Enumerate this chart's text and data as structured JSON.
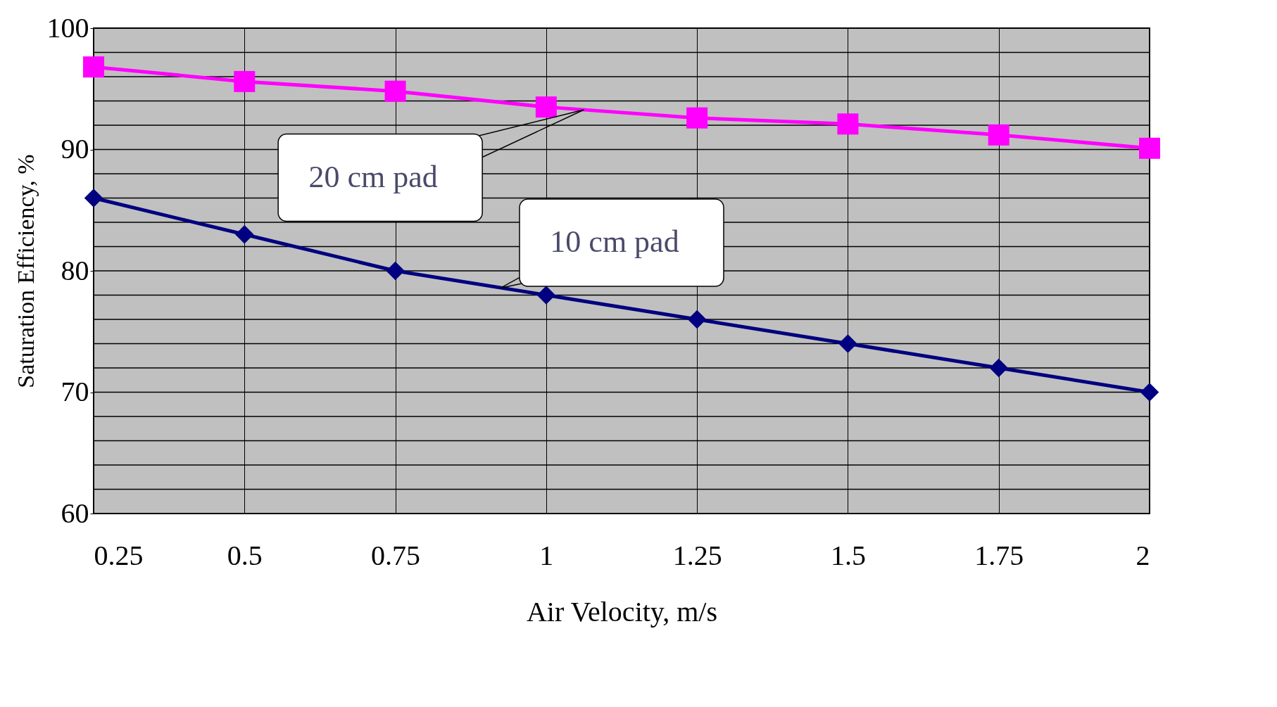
{
  "chart_data": {
    "type": "line",
    "xlabel": "Air Velocity, m/s",
    "ylabel": "Saturation Efficiency, %",
    "categories": [
      "0.25",
      "0.5",
      "0.75",
      "1",
      "1.25",
      "1.5",
      "1.75",
      "2"
    ],
    "series": [
      {
        "name": "20 cm pad",
        "color": "#ff00ff",
        "marker": "square",
        "values": [
          96.8,
          95.6,
          94.8,
          93.5,
          92.6,
          92.1,
          91.2,
          90.1
        ]
      },
      {
        "name": "10 cm pad",
        "color": "#000080",
        "marker": "diamond",
        "values": [
          86,
          83,
          80,
          78,
          76,
          74,
          72,
          70
        ]
      }
    ],
    "ylim": [
      60,
      100
    ],
    "yticks": [
      60,
      {
        "value": 62,
        "label": null
      },
      {
        "value": 64,
        "label": null
      },
      {
        "value": 66,
        "label": null
      },
      {
        "value": 68,
        "label": null
      },
      70,
      {
        "value": 72,
        "label": null
      },
      {
        "value": 74,
        "label": null
      },
      {
        "value": 76,
        "label": null
      },
      {
        "value": 78,
        "label": null
      },
      80,
      {
        "value": 82,
        "label": null
      },
      {
        "value": 84,
        "label": null
      },
      {
        "value": 86,
        "label": null
      },
      {
        "value": 88,
        "label": null
      },
      90,
      {
        "value": 92,
        "label": null
      },
      {
        "value": 94,
        "label": null
      },
      {
        "value": 96,
        "label": null
      },
      {
        "value": 98,
        "label": null
      },
      100
    ],
    "grid": true,
    "legend": false,
    "line_style": "solid"
  }
}
